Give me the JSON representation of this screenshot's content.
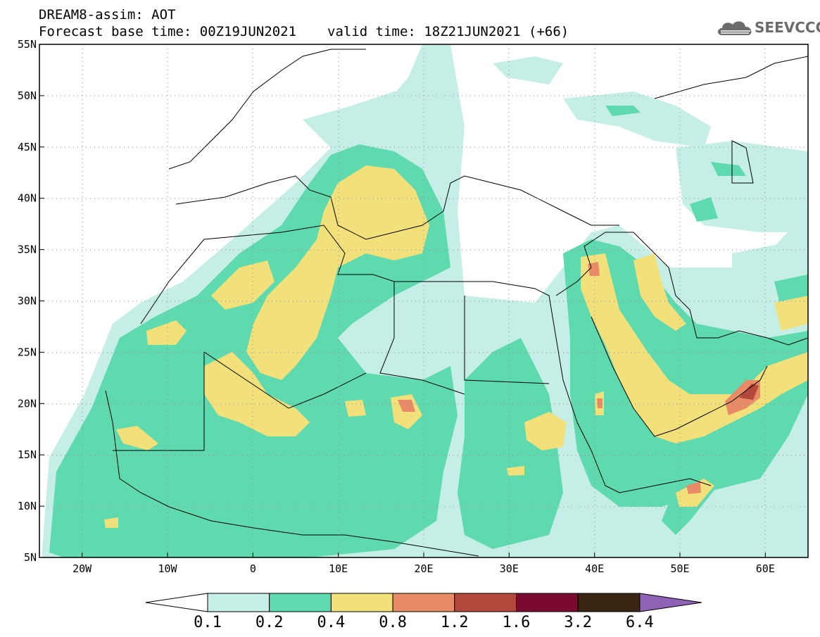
{
  "header": {
    "line1": "DREAM8-assim: AOT",
    "base_time": "Forecast base time: 00Z19JUN2021",
    "valid_time": "valid time: 18Z21JUN2021 (+66)"
  },
  "logo": {
    "text": "SEEVCCC",
    "icon": "cloud-logo-icon",
    "color": "#6b6b6b"
  },
  "map_data": {
    "projection": "cylindrical",
    "lon_range": [
      -25,
      65
    ],
    "lat_range": [
      5,
      55
    ],
    "lat_ticks": [
      "55N",
      "50N",
      "45N",
      "40N",
      "35N",
      "30N",
      "25N",
      "20N",
      "15N",
      "10N",
      "5N"
    ],
    "lon_ticks": [
      "20W",
      "10W",
      "0",
      "10E",
      "20E",
      "30E",
      "40E",
      "50E",
      "60E"
    ],
    "lat_tick_values": [
      55,
      50,
      45,
      40,
      35,
      30,
      25,
      20,
      15,
      10,
      5
    ],
    "lon_tick_values": [
      -20,
      -10,
      0,
      10,
      20,
      30,
      40,
      50,
      60
    ],
    "grid": "dotted",
    "colorbar": {
      "labels": [
        "0.1",
        "0.2",
        "0.4",
        "0.8",
        "1.2",
        "1.6",
        "3.2",
        "6.4"
      ],
      "colors": [
        "#ffffff",
        "#c4eee6",
        "#5fd9ae",
        "#f2e07a",
        "#e88b66",
        "#b4483c",
        "#7a0a2e",
        "#3a2412",
        "#8e63b6"
      ]
    }
  }
}
